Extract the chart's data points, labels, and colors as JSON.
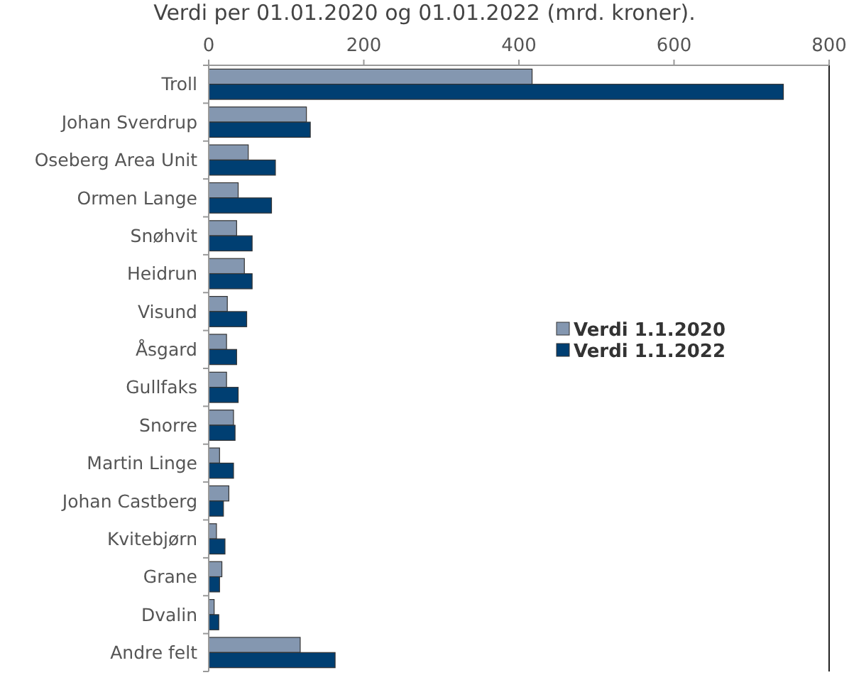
{
  "chart_data": {
    "type": "bar",
    "orientation": "horizontal",
    "title": "Verdi per 01.01.2020 og 01.01.2022 (mrd. kroner).",
    "categories": [
      "Troll",
      "Johan Sverdrup",
      "Oseberg Area Unit",
      "Ormen Lange",
      "Snøhvit",
      "Heidrun",
      "Visund",
      "Åsgard",
      "Gullfaks",
      "Snorre",
      "Martin Linge",
      "Johan Castberg",
      "Kvitebjørn",
      "Grane",
      "Dvalin",
      "Andre felt"
    ],
    "series": [
      {
        "name": "Verdi 1.1.2020",
        "color": "#8497b0",
        "values": [
          417,
          126,
          51,
          38,
          36,
          46,
          24,
          23,
          23,
          32,
          14,
          26,
          10,
          17,
          7,
          118
        ]
      },
      {
        "name": "Verdi 1.1.2022",
        "color": "#003f72",
        "values": [
          741,
          131,
          86,
          81,
          56,
          56,
          49,
          36,
          38,
          34,
          32,
          19,
          21,
          14,
          13,
          163
        ]
      }
    ],
    "xlim": [
      0,
      800
    ],
    "xticks": [
      0,
      200,
      400,
      600,
      800
    ],
    "grid": false,
    "legend": "right"
  }
}
